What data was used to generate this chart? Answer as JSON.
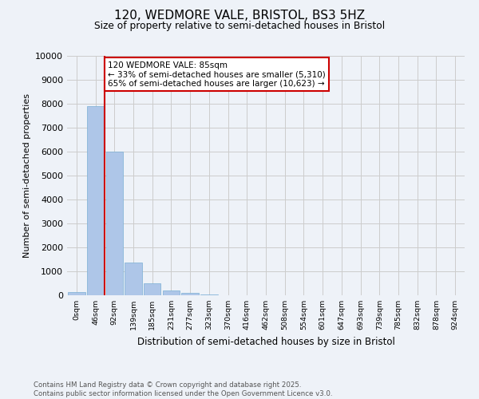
{
  "title_line1": "120, WEDMORE VALE, BRISTOL, BS3 5HZ",
  "title_line2": "Size of property relative to semi-detached houses in Bristol",
  "xlabel": "Distribution of semi-detached houses by size in Bristol",
  "ylabel": "Number of semi-detached properties",
  "bins": [
    "0sqm",
    "46sqm",
    "92sqm",
    "139sqm",
    "185sqm",
    "231sqm",
    "277sqm",
    "323sqm",
    "370sqm",
    "416sqm",
    "462sqm",
    "508sqm",
    "554sqm",
    "601sqm",
    "647sqm",
    "693sqm",
    "739sqm",
    "785sqm",
    "832sqm",
    "878sqm",
    "924sqm"
  ],
  "bar_values": [
    130,
    7900,
    6000,
    1380,
    490,
    200,
    100,
    50,
    0,
    0,
    0,
    0,
    0,
    0,
    0,
    0,
    0,
    0,
    0,
    0,
    0
  ],
  "bar_color": "#aec6e8",
  "bar_edge_color": "#7bafd4",
  "vline_color": "#cc0000",
  "annotation_text": "120 WEDMORE VALE: 85sqm\n← 33% of semi-detached houses are smaller (5,310)\n65% of semi-detached houses are larger (10,623) →",
  "ylim": [
    0,
    10000
  ],
  "yticks": [
    0,
    1000,
    2000,
    3000,
    4000,
    5000,
    6000,
    7000,
    8000,
    9000,
    10000
  ],
  "footer_text": "Contains HM Land Registry data © Crown copyright and database right 2025.\nContains public sector information licensed under the Open Government Licence v3.0.",
  "background_color": "#eef2f8",
  "grid_color": "#cccccc"
}
